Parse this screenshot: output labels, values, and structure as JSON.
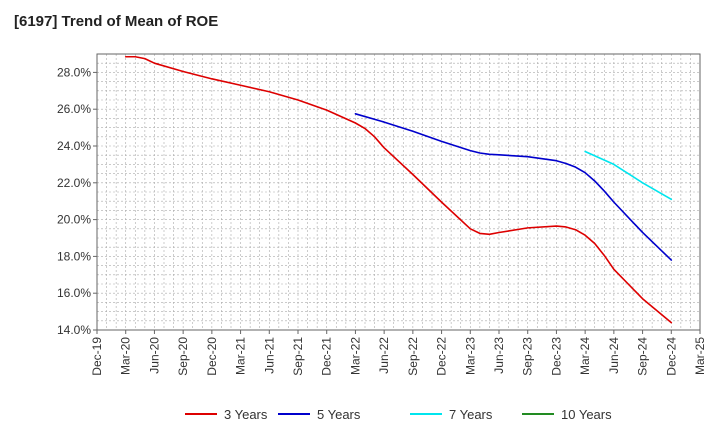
{
  "chart_data": {
    "type": "line",
    "title": "[6197]  Trend of Mean of ROE",
    "xlabel": "",
    "ylabel": "",
    "x_ticks": [
      "Dec-19",
      "Mar-20",
      "Jun-20",
      "Sep-20",
      "Dec-20",
      "Mar-21",
      "Jun-21",
      "Sep-21",
      "Dec-21",
      "Mar-22",
      "Jun-22",
      "Sep-22",
      "Dec-22",
      "Mar-23",
      "Jun-23",
      "Sep-23",
      "Dec-23",
      "Mar-24",
      "Jun-24",
      "Sep-24",
      "Dec-24",
      "Mar-25"
    ],
    "y_ticks": [
      "14.0%",
      "16.0%",
      "18.0%",
      "20.0%",
      "22.0%",
      "24.0%",
      "26.0%",
      "28.0%"
    ],
    "ylim": [
      14.0,
      29.0
    ],
    "grid": true,
    "legend_position": "bottom",
    "series": [
      {
        "name": "3 Years",
        "color": "#dd0000",
        "points": [
          [
            "Mar-20",
            28.85
          ],
          [
            "Apr-20",
            28.85
          ],
          [
            "May-20",
            28.75
          ],
          [
            "Jun-20",
            28.5
          ],
          [
            "Sep-20",
            28.05
          ],
          [
            "Dec-20",
            27.65
          ],
          [
            "Mar-21",
            27.3
          ],
          [
            "Jun-21",
            26.95
          ],
          [
            "Sep-21",
            26.5
          ],
          [
            "Dec-21",
            25.95
          ],
          [
            "Mar-22",
            25.25
          ],
          [
            "Apr-22",
            24.95
          ],
          [
            "May-22",
            24.5
          ],
          [
            "Jun-22",
            23.9
          ],
          [
            "Sep-22",
            22.45
          ],
          [
            "Dec-22",
            20.95
          ],
          [
            "Mar-23",
            19.5
          ],
          [
            "Apr-23",
            19.25
          ],
          [
            "May-23",
            19.2
          ],
          [
            "Jun-23",
            19.3
          ],
          [
            "Sep-23",
            19.55
          ],
          [
            "Dec-23",
            19.65
          ],
          [
            "Jan-24",
            19.6
          ],
          [
            "Feb-24",
            19.45
          ],
          [
            "Mar-24",
            19.15
          ],
          [
            "Apr-24",
            18.7
          ],
          [
            "May-24",
            18.05
          ],
          [
            "Jun-24",
            17.3
          ],
          [
            "Sep-24",
            15.7
          ],
          [
            "Dec-24",
            14.4
          ]
        ]
      },
      {
        "name": "5 Years",
        "color": "#0000cc",
        "points": [
          [
            "Mar-22",
            25.75
          ],
          [
            "Jun-22",
            25.3
          ],
          [
            "Sep-22",
            24.8
          ],
          [
            "Dec-22",
            24.25
          ],
          [
            "Mar-23",
            23.75
          ],
          [
            "Apr-23",
            23.62
          ],
          [
            "May-23",
            23.55
          ],
          [
            "Jun-23",
            23.52
          ],
          [
            "Sep-23",
            23.42
          ],
          [
            "Dec-23",
            23.2
          ],
          [
            "Jan-24",
            23.05
          ],
          [
            "Feb-24",
            22.85
          ],
          [
            "Mar-24",
            22.55
          ],
          [
            "Apr-24",
            22.1
          ],
          [
            "May-24",
            21.55
          ],
          [
            "Jun-24",
            20.95
          ],
          [
            "Sep-24",
            19.3
          ],
          [
            "Dec-24",
            17.8
          ]
        ]
      },
      {
        "name": "7 Years",
        "color": "#00e5ee",
        "points": [
          [
            "Mar-24",
            23.7
          ],
          [
            "Jun-24",
            23.0
          ],
          [
            "Sep-24",
            22.0
          ],
          [
            "Dec-24",
            21.1
          ]
        ]
      },
      {
        "name": "10 Years",
        "color": "#228b22",
        "points": []
      }
    ]
  }
}
